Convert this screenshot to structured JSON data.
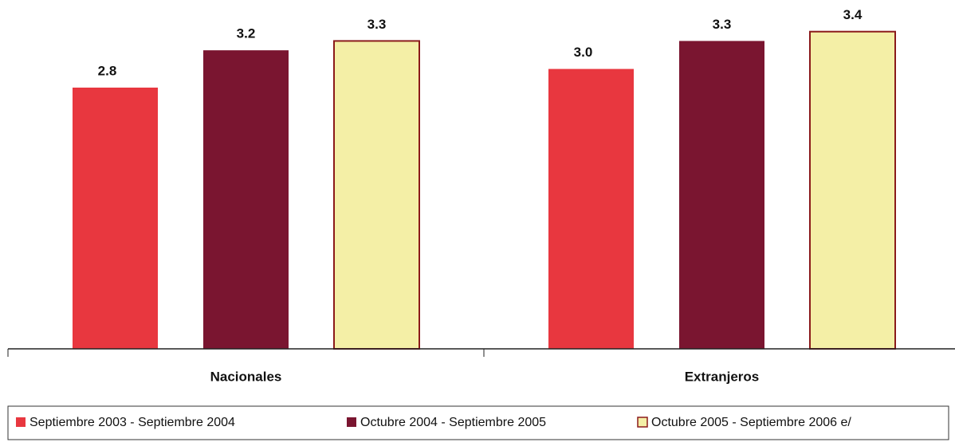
{
  "chart_data": {
    "type": "bar",
    "categories": [
      "Nacionales",
      "Extranjeros"
    ],
    "series": [
      {
        "name": "Septiembre 2003 - Septiembre 2004",
        "color": "#e8373f",
        "values": [
          2.8,
          3.0
        ],
        "value_labels": [
          "2.8",
          "3.0"
        ]
      },
      {
        "name": "Octubre 2004 - Septiembre 2005",
        "color": "#7a1530",
        "values": [
          3.2,
          3.3
        ],
        "value_labels": [
          "3.2",
          "3.3"
        ]
      },
      {
        "name": "Octubre 2005 - Septiembre 2006 e/",
        "color": "#f4efa6",
        "values": [
          3.3,
          3.4
        ],
        "value_labels": [
          "3.3",
          "3.4"
        ]
      }
    ],
    "ylim": [
      0,
      3.5
    ],
    "legend": "bottom"
  }
}
